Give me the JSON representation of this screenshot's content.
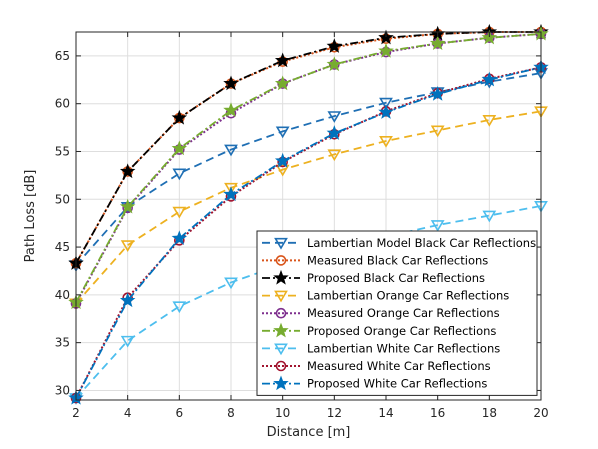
{
  "chart_data": {
    "type": "line",
    "title": "",
    "xlabel": "Distance [m]",
    "ylabel": "Path Loss [dB]",
    "xlim": [
      2,
      20
    ],
    "ylim": [
      29,
      67.5
    ],
    "xticks": [
      2,
      4,
      6,
      8,
      10,
      12,
      14,
      16,
      18,
      20
    ],
    "yticks": [
      30,
      35,
      40,
      45,
      50,
      55,
      60,
      65
    ],
    "grid": true,
    "legend_position": "bottom-right",
    "x": [
      2,
      4,
      6,
      8,
      10,
      12,
      14,
      16,
      18,
      20
    ],
    "series": [
      {
        "name": "Lambertian Model Black Car Reflections",
        "values": [
          43.1,
          49.2,
          52.7,
          55.2,
          57.1,
          58.7,
          60.1,
          61.2,
          62.3,
          63.2
        ],
        "color": "#1f6fb4",
        "dash": "8,5",
        "marker": "triangle-down",
        "width": 1.8
      },
      {
        "name": "Measured Black Car Reflections",
        "values": [
          43.3,
          52.9,
          58.5,
          62.1,
          64.4,
          65.9,
          66.8,
          67.3,
          67.5,
          67.5
        ],
        "color": "#d9541a",
        "dash": "2,2",
        "marker": "circle",
        "width": 2
      },
      {
        "name": "Proposed Black Car Reflections",
        "values": [
          43.3,
          52.9,
          58.5,
          62.1,
          64.5,
          66.0,
          66.9,
          67.3,
          67.5,
          67.5
        ],
        "color": "#000000",
        "dash": "8,3,2,3",
        "marker": "star",
        "width": 1.8
      },
      {
        "name": "Lambertian Orange Car Reflections",
        "values": [
          39.1,
          45.2,
          48.7,
          51.2,
          53.1,
          54.7,
          56.1,
          57.2,
          58.3,
          59.2
        ],
        "color": "#edb120",
        "dash": "8,5",
        "marker": "triangle-down",
        "width": 1.8
      },
      {
        "name": "Measured Orange Car Reflections",
        "values": [
          39.1,
          49.1,
          55.2,
          59.0,
          62.1,
          64.1,
          65.4,
          66.3,
          66.9,
          67.3
        ],
        "color": "#7e2f8e",
        "dash": "2,2",
        "marker": "circle",
        "width": 2
      },
      {
        "name": "Proposed Orange Car Reflections",
        "values": [
          39.2,
          49.2,
          55.3,
          59.3,
          62.1,
          64.1,
          65.5,
          66.3,
          66.9,
          67.3
        ],
        "color": "#77ac30",
        "dash": "8,3,2,3",
        "marker": "star",
        "width": 1.8
      },
      {
        "name": "Lambertian White Car Reflections",
        "values": [
          29.2,
          35.2,
          38.8,
          41.3,
          43.2,
          44.8,
          46.1,
          47.3,
          48.3,
          49.3
        ],
        "color": "#4dbeee",
        "dash": "8,5",
        "marker": "triangle-down",
        "width": 1.8
      },
      {
        "name": "Measured White Car Reflections",
        "values": [
          29.2,
          39.7,
          45.7,
          50.3,
          53.9,
          56.8,
          59.2,
          61.1,
          62.6,
          63.8
        ],
        "color": "#a2142f",
        "dash": "2,2",
        "marker": "circle",
        "width": 2
      },
      {
        "name": "Proposed White Car Reflections",
        "values": [
          29.2,
          39.4,
          45.9,
          50.5,
          54.0,
          56.9,
          59.1,
          61.0,
          62.5,
          63.8
        ],
        "color": "#0072bd",
        "dash": "8,3,2,3",
        "marker": "star",
        "width": 1.8
      }
    ]
  }
}
